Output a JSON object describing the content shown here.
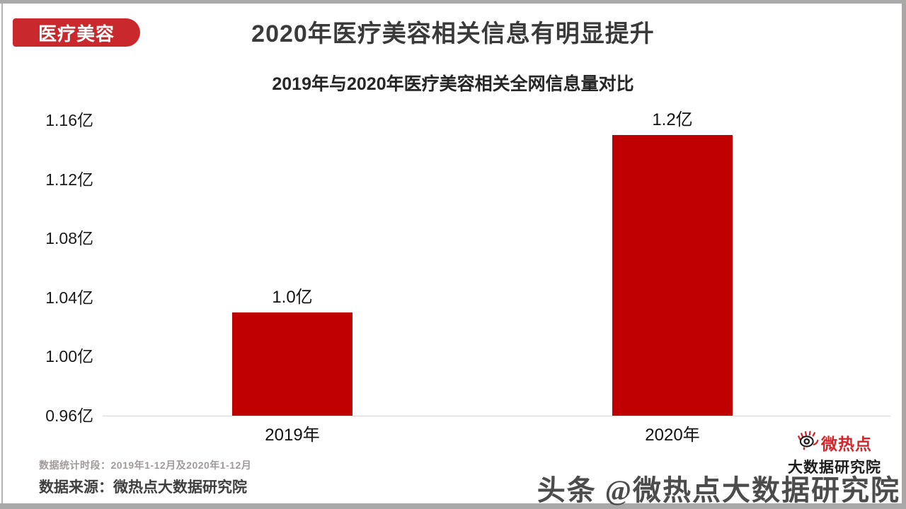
{
  "page": {
    "badge": "医疗美容",
    "badge_color": "#c9282d",
    "title": "2020年医疗美容相关信息有明显提升"
  },
  "chart_data": {
    "type": "bar",
    "title": "2019年与2020年医疗美容相关全网信息量对比",
    "categories": [
      "2019年",
      "2020年"
    ],
    "values": [
      1.03,
      1.15
    ],
    "value_labels": [
      "1.0亿",
      "1.2亿"
    ],
    "unit": "亿",
    "y_ticks": [
      "1.16亿",
      "1.12亿",
      "1.08亿",
      "1.04亿",
      "1.00亿",
      "0.96亿"
    ],
    "y_tick_values": [
      1.16,
      1.12,
      1.08,
      1.04,
      1.0,
      0.96
    ],
    "ylim": [
      0.96,
      1.17
    ],
    "bar_color": "#c00000",
    "grid": false,
    "legend": false
  },
  "footer": {
    "period_note": "数据统计时段：2019年1-12月及2020年1-12月",
    "source_note": "数据来源：微热点大数据研究院"
  },
  "logo": {
    "icon": "weihotspot-eye-icon",
    "brand": "微热点",
    "subbrand": "大数据研究院",
    "brand_color": "#d5252b"
  },
  "watermark": "头条 @微热点大数据研究院"
}
